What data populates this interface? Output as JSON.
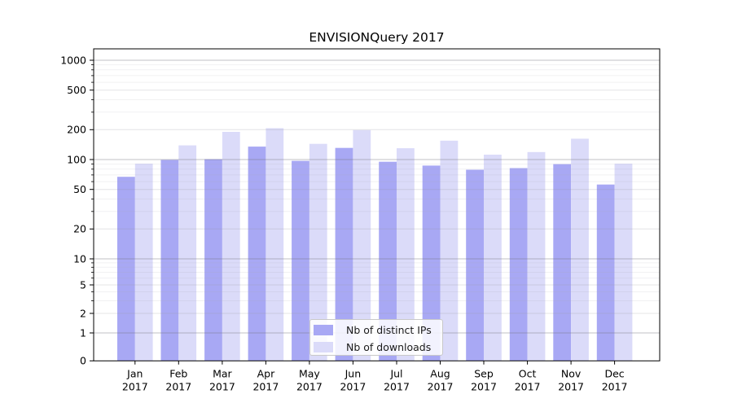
{
  "chart_data": {
    "type": "bar",
    "title": "ENVISIONQuery 2017",
    "categories": [
      "Jan 2017",
      "Feb 2017",
      "Mar 2017",
      "Apr 2017",
      "May 2017",
      "Jun 2017",
      "Jul 2017",
      "Aug 2017",
      "Sep 2017",
      "Oct 2017",
      "Nov 2017",
      "Dec 2017"
    ],
    "series": [
      {
        "name": "Nb of distinct IPs",
        "color": "#a8a8f4",
        "values": [
          67,
          99,
          101,
          135,
          97,
          131,
          95,
          87,
          79,
          82,
          90,
          56
        ]
      },
      {
        "name": "Nb of downloads",
        "color": "#dbdbf9",
        "values": [
          91,
          139,
          190,
          207,
          144,
          198,
          130,
          155,
          112,
          119,
          162,
          91
        ]
      }
    ],
    "xlabel": "",
    "ylabel": "",
    "yscale": "symlog",
    "ylim": [
      0,
      1300
    ],
    "yticks": [
      0,
      1,
      2,
      5,
      10,
      20,
      50,
      100,
      200,
      500,
      1000
    ],
    "yticks_minor": [
      3,
      4,
      6,
      7,
      8,
      9,
      30,
      40,
      60,
      70,
      80,
      90,
      300,
      400,
      600,
      700,
      800,
      900
    ],
    "grid": true,
    "legend_position": "lower center"
  },
  "colors": {
    "grid_major": "rgba(118,118,124,0.45)",
    "grid_mid": "rgba(150,150,156,0.26)",
    "grid_minor": "rgba(168,168,174,0.16)",
    "spine": "#000000"
  }
}
